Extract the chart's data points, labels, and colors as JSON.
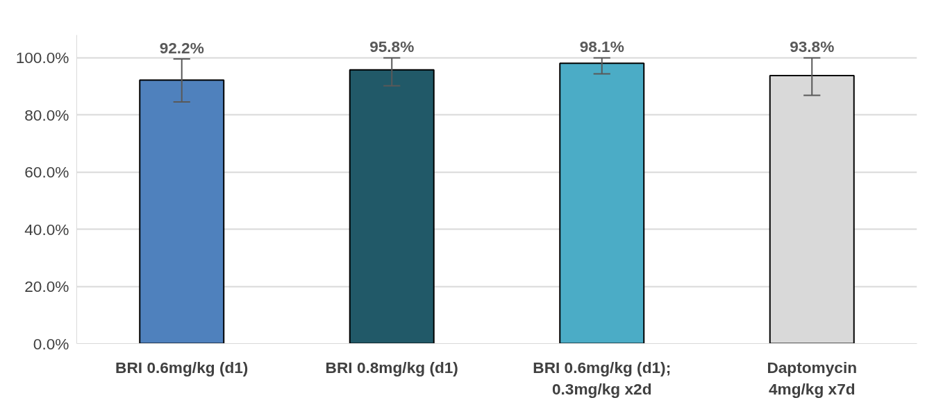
{
  "chart_data": {
    "type": "bar",
    "categories": [
      "BRI 0.6mg/kg (d1)",
      "BRI 0.8mg/kg (d1)",
      "BRI 0.6mg/kg (d1);\n0.3mg/kg x2d",
      "Daptomycin\n4mg/kg x7d"
    ],
    "values": [
      92.2,
      95.8,
      98.1,
      93.8
    ],
    "colors": [
      "#4f81bd",
      "#215968",
      "#4bacc6",
      "#d9d9d9"
    ],
    "errors": [
      [
        84.6,
        99.6
      ],
      [
        90.2,
        100
      ],
      [
        94.4,
        100
      ],
      [
        86.9,
        100
      ]
    ],
    "value_labels": [
      "92.2%",
      "95.8%",
      "98.1%",
      "93.8%"
    ],
    "ylim": [
      0,
      108
    ],
    "yticks": [
      {
        "value": 0,
        "label": "0.0%"
      },
      {
        "value": 20,
        "label": "20.0%"
      },
      {
        "value": 40,
        "label": "40.0%"
      },
      {
        "value": 60,
        "label": "60.0%"
      },
      {
        "value": 80,
        "label": "80.0%"
      },
      {
        "value": 100,
        "label": "100.0%"
      }
    ],
    "grid": "y"
  }
}
